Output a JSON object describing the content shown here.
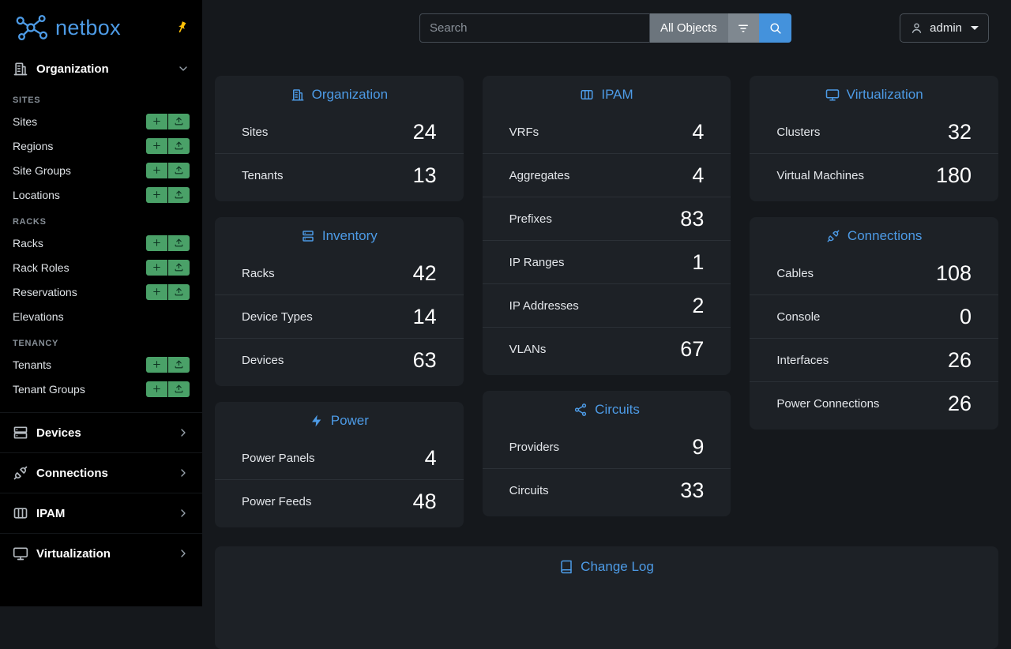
{
  "brand": {
    "name": "netbox",
    "logo_icon": "netbox-logo-icon",
    "pin_icon": "pin-icon"
  },
  "header": {
    "search": {
      "placeholder": "Search",
      "value": ""
    },
    "scope_button": "All Objects",
    "filter_icon": "filter-icon",
    "search_icon": "search-icon",
    "user_menu": {
      "label": "admin",
      "icon": "user-icon",
      "caret": "caret-down-icon"
    }
  },
  "sidebar": {
    "expanded_group": {
      "label": "Organization",
      "icon": "building-icon",
      "chevron": "chevron-down-icon"
    },
    "sections": [
      {
        "title": "SITES",
        "items": [
          {
            "label": "Sites",
            "actions": true
          },
          {
            "label": "Regions",
            "actions": true
          },
          {
            "label": "Site Groups",
            "actions": true
          },
          {
            "label": "Locations",
            "actions": true
          }
        ]
      },
      {
        "title": "RACKS",
        "items": [
          {
            "label": "Racks",
            "actions": true
          },
          {
            "label": "Rack Roles",
            "actions": true
          },
          {
            "label": "Reservations",
            "actions": true
          },
          {
            "label": "Elevations",
            "actions": false
          }
        ]
      },
      {
        "title": "TENANCY",
        "items": [
          {
            "label": "Tenants",
            "actions": true
          },
          {
            "label": "Tenant Groups",
            "actions": true
          }
        ]
      }
    ],
    "collapsed_groups": [
      {
        "label": "Devices",
        "icon": "devices-icon"
      },
      {
        "label": "Connections",
        "icon": "connections-icon"
      },
      {
        "label": "IPAM",
        "icon": "ipam-icon"
      },
      {
        "label": "Virtualization",
        "icon": "virtualization-icon"
      }
    ]
  },
  "cards": [
    {
      "title": "Organization",
      "icon": "building-icon",
      "rows": [
        {
          "label": "Sites",
          "value": "24"
        },
        {
          "label": "Tenants",
          "value": "13"
        }
      ]
    },
    {
      "title": "Inventory",
      "icon": "inventory-icon",
      "rows": [
        {
          "label": "Racks",
          "value": "42"
        },
        {
          "label": "Device Types",
          "value": "14"
        },
        {
          "label": "Devices",
          "value": "63"
        }
      ]
    },
    {
      "title": "Power",
      "icon": "power-icon",
      "rows": [
        {
          "label": "Power Panels",
          "value": "4"
        },
        {
          "label": "Power Feeds",
          "value": "48"
        }
      ]
    },
    {
      "title": "IPAM",
      "icon": "ipam-icon",
      "rows": [
        {
          "label": "VRFs",
          "value": "4"
        },
        {
          "label": "Aggregates",
          "value": "4"
        },
        {
          "label": "Prefixes",
          "value": "83"
        },
        {
          "label": "IP Ranges",
          "value": "1"
        },
        {
          "label": "IP Addresses",
          "value": "2"
        },
        {
          "label": "VLANs",
          "value": "67"
        }
      ]
    },
    {
      "title": "Circuits",
      "icon": "circuits-icon",
      "rows": [
        {
          "label": "Providers",
          "value": "9"
        },
        {
          "label": "Circuits",
          "value": "33"
        }
      ]
    },
    {
      "title": "Virtualization",
      "icon": "virtualization-icon",
      "rows": [
        {
          "label": "Clusters",
          "value": "32"
        },
        {
          "label": "Virtual Machines",
          "value": "180"
        }
      ]
    },
    {
      "title": "Connections",
      "icon": "connections-icon",
      "rows": [
        {
          "label": "Cables",
          "value": "108"
        },
        {
          "label": "Console",
          "value": "0"
        },
        {
          "label": "Interfaces",
          "value": "26"
        },
        {
          "label": "Power Connections",
          "value": "26"
        }
      ]
    }
  ],
  "changelog": {
    "title": "Change Log",
    "icon": "journal-icon"
  },
  "colors": {
    "accent": "#4d9be6",
    "green": "#4aa168",
    "pin": "#ffc107"
  }
}
